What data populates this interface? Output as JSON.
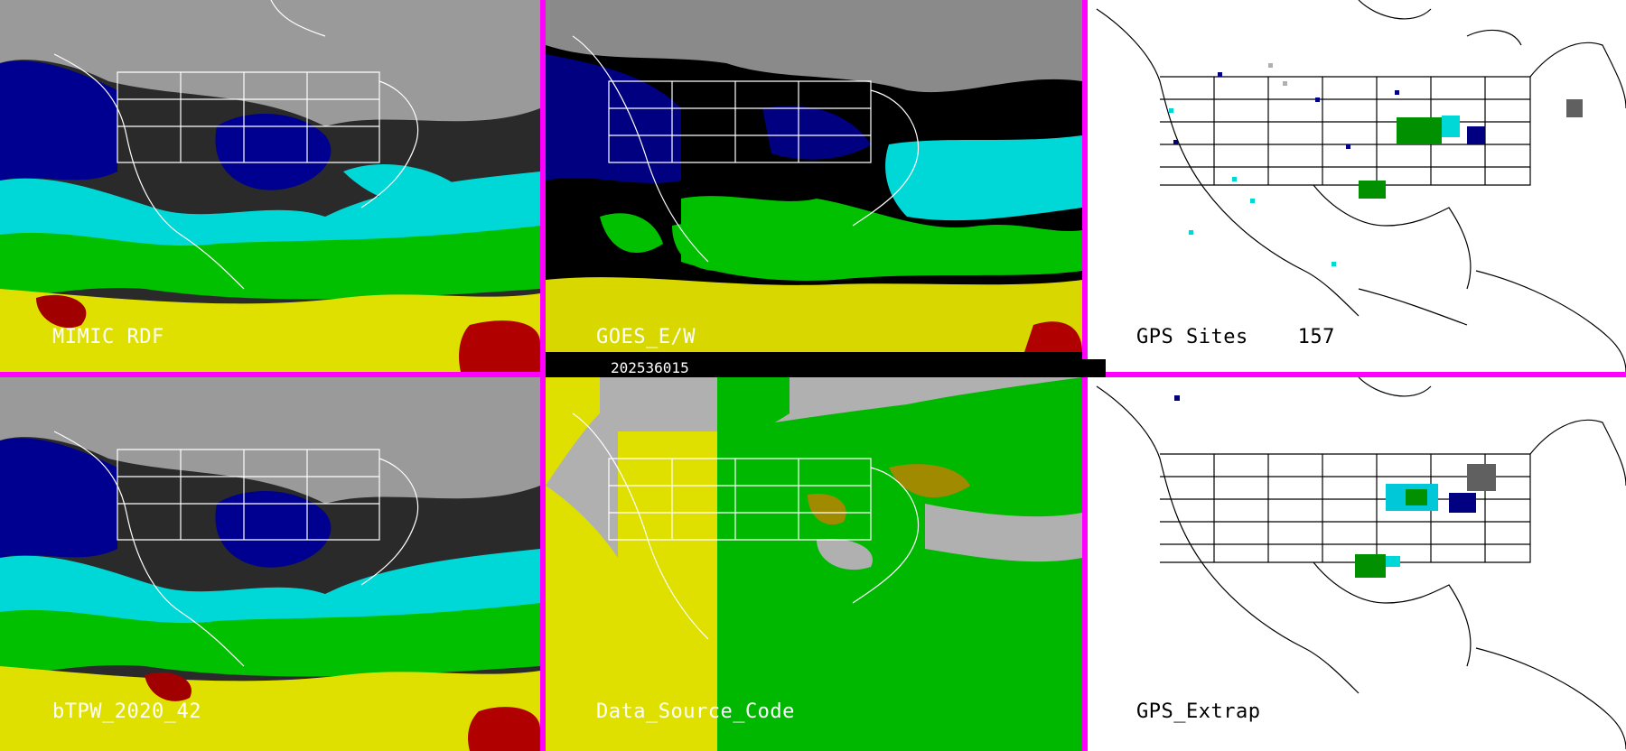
{
  "timestamp": "202536015",
  "colors": {
    "divider": "#ff00ff",
    "dry": "#000080",
    "mid": "#00e0e0",
    "moist": "#00c000",
    "wet": "#e0e000",
    "very_wet": "#a00000",
    "source_gray": "#b0b0b0",
    "source_yellow": "#e0e000",
    "source_green": "#00c000",
    "source_olive": "#a08a00"
  },
  "panels": [
    {
      "id": "mimic",
      "label": "MIMIC RDF",
      "kind": "satellite"
    },
    {
      "id": "goes",
      "label": "GOES_E/W",
      "kind": "satellite-masked"
    },
    {
      "id": "gps-sites",
      "label": "GPS Sites    157",
      "kind": "station"
    },
    {
      "id": "btpw",
      "label": "bTPW_2020_42",
      "kind": "satellite"
    },
    {
      "id": "source",
      "label": "Data_Source_Code",
      "kind": "source"
    },
    {
      "id": "gps-extrap",
      "label": "GPS_Extrap",
      "kind": "station"
    }
  ]
}
